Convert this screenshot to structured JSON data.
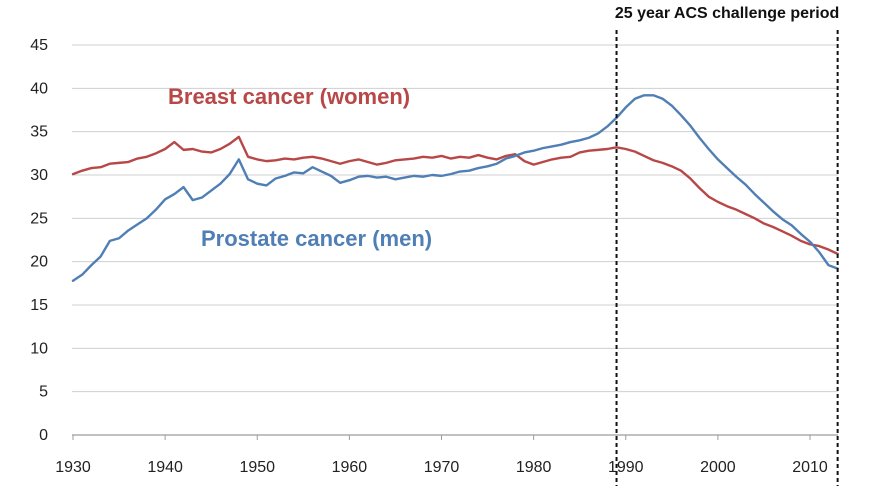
{
  "chart_data": {
    "type": "line",
    "title": "",
    "xlabel": "",
    "ylabel": "",
    "xlim": [
      1930,
      2013
    ],
    "ylim": [
      0,
      45
    ],
    "grid": true,
    "legend": "none",
    "x_ticks": [
      "1930",
      "1940",
      "1950",
      "1960",
      "1970",
      "1980",
      "1990",
      "2000",
      "2010"
    ],
    "y_ticks": [
      "0",
      "5",
      "10",
      "15",
      "20",
      "25",
      "30",
      "35",
      "40",
      "45"
    ],
    "annotation": {
      "text": "25 year ACS challenge period",
      "x_start": 1989,
      "x_end": 2013
    },
    "series": [
      {
        "name": "Breast cancer (women)",
        "color": "#b84747",
        "points": [
          [
            1930,
            30.1
          ],
          [
            1931,
            30.5
          ],
          [
            1932,
            30.8
          ],
          [
            1933,
            30.9
          ],
          [
            1934,
            31.3
          ],
          [
            1935,
            31.4
          ],
          [
            1936,
            31.5
          ],
          [
            1937,
            31.9
          ],
          [
            1938,
            32.1
          ],
          [
            1939,
            32.5
          ],
          [
            1940,
            33.0
          ],
          [
            1941,
            33.8
          ],
          [
            1942,
            32.9
          ],
          [
            1943,
            33.0
          ],
          [
            1944,
            32.7
          ],
          [
            1945,
            32.6
          ],
          [
            1946,
            33.0
          ],
          [
            1947,
            33.6
          ],
          [
            1948,
            34.4
          ],
          [
            1949,
            32.1
          ],
          [
            1950,
            31.8
          ],
          [
            1951,
            31.6
          ],
          [
            1952,
            31.7
          ],
          [
            1953,
            31.9
          ],
          [
            1954,
            31.8
          ],
          [
            1955,
            32.0
          ],
          [
            1956,
            32.1
          ],
          [
            1957,
            31.9
          ],
          [
            1958,
            31.6
          ],
          [
            1959,
            31.3
          ],
          [
            1960,
            31.6
          ],
          [
            1961,
            31.8
          ],
          [
            1962,
            31.5
          ],
          [
            1963,
            31.2
          ],
          [
            1964,
            31.4
          ],
          [
            1965,
            31.7
          ],
          [
            1966,
            31.8
          ],
          [
            1967,
            31.9
          ],
          [
            1968,
            32.1
          ],
          [
            1969,
            32.0
          ],
          [
            1970,
            32.2
          ],
          [
            1971,
            31.9
          ],
          [
            1972,
            32.1
          ],
          [
            1973,
            32.0
          ],
          [
            1974,
            32.3
          ],
          [
            1975,
            32.0
          ],
          [
            1976,
            31.8
          ],
          [
            1977,
            32.2
          ],
          [
            1978,
            32.4
          ],
          [
            1979,
            31.6
          ],
          [
            1980,
            31.2
          ],
          [
            1981,
            31.5
          ],
          [
            1982,
            31.8
          ],
          [
            1983,
            32.0
          ],
          [
            1984,
            32.1
          ],
          [
            1985,
            32.6
          ],
          [
            1986,
            32.8
          ],
          [
            1987,
            32.9
          ],
          [
            1988,
            33.0
          ],
          [
            1989,
            33.2
          ],
          [
            1990,
            33.0
          ],
          [
            1991,
            32.7
          ],
          [
            1992,
            32.2
          ],
          [
            1993,
            31.7
          ],
          [
            1994,
            31.4
          ],
          [
            1995,
            31.0
          ],
          [
            1996,
            30.5
          ],
          [
            1997,
            29.6
          ],
          [
            1998,
            28.5
          ],
          [
            1999,
            27.5
          ],
          [
            2000,
            26.9
          ],
          [
            2001,
            26.4
          ],
          [
            2002,
            26.0
          ],
          [
            2003,
            25.5
          ],
          [
            2004,
            25.0
          ],
          [
            2005,
            24.4
          ],
          [
            2006,
            24.0
          ],
          [
            2007,
            23.5
          ],
          [
            2008,
            23.0
          ],
          [
            2009,
            22.4
          ],
          [
            2010,
            22.0
          ],
          [
            2011,
            21.8
          ],
          [
            2012,
            21.4
          ],
          [
            2013,
            20.9
          ]
        ]
      },
      {
        "name": "Prostate cancer (men)",
        "color": "#4f7fb5",
        "points": [
          [
            1930,
            17.8
          ],
          [
            1931,
            18.5
          ],
          [
            1932,
            19.6
          ],
          [
            1933,
            20.6
          ],
          [
            1934,
            22.4
          ],
          [
            1935,
            22.7
          ],
          [
            1936,
            23.6
          ],
          [
            1937,
            24.3
          ],
          [
            1938,
            25.0
          ],
          [
            1939,
            26.0
          ],
          [
            1940,
            27.2
          ],
          [
            1941,
            27.8
          ],
          [
            1942,
            28.6
          ],
          [
            1943,
            27.1
          ],
          [
            1944,
            27.4
          ],
          [
            1945,
            28.2
          ],
          [
            1946,
            29.0
          ],
          [
            1947,
            30.1
          ],
          [
            1948,
            31.8
          ],
          [
            1949,
            29.5
          ],
          [
            1950,
            29.0
          ],
          [
            1951,
            28.8
          ],
          [
            1952,
            29.6
          ],
          [
            1953,
            29.9
          ],
          [
            1954,
            30.3
          ],
          [
            1955,
            30.2
          ],
          [
            1956,
            30.9
          ],
          [
            1957,
            30.4
          ],
          [
            1958,
            29.9
          ],
          [
            1959,
            29.1
          ],
          [
            1960,
            29.4
          ],
          [
            1961,
            29.8
          ],
          [
            1962,
            29.9
          ],
          [
            1963,
            29.7
          ],
          [
            1964,
            29.8
          ],
          [
            1965,
            29.5
          ],
          [
            1966,
            29.7
          ],
          [
            1967,
            29.9
          ],
          [
            1968,
            29.8
          ],
          [
            1969,
            30.0
          ],
          [
            1970,
            29.9
          ],
          [
            1971,
            30.1
          ],
          [
            1972,
            30.4
          ],
          [
            1973,
            30.5
          ],
          [
            1974,
            30.8
          ],
          [
            1975,
            31.0
          ],
          [
            1976,
            31.3
          ],
          [
            1977,
            31.9
          ],
          [
            1978,
            32.2
          ],
          [
            1979,
            32.6
          ],
          [
            1980,
            32.8
          ],
          [
            1981,
            33.1
          ],
          [
            1982,
            33.3
          ],
          [
            1983,
            33.5
          ],
          [
            1984,
            33.8
          ],
          [
            1985,
            34.0
          ],
          [
            1986,
            34.3
          ],
          [
            1987,
            34.8
          ],
          [
            1988,
            35.6
          ],
          [
            1989,
            36.6
          ],
          [
            1990,
            37.8
          ],
          [
            1991,
            38.8
          ],
          [
            1992,
            39.2
          ],
          [
            1993,
            39.2
          ],
          [
            1994,
            38.8
          ],
          [
            1995,
            38.0
          ],
          [
            1996,
            36.9
          ],
          [
            1997,
            35.7
          ],
          [
            1998,
            34.3
          ],
          [
            1999,
            33.0
          ],
          [
            2000,
            31.8
          ],
          [
            2001,
            30.8
          ],
          [
            2002,
            29.8
          ],
          [
            2003,
            28.9
          ],
          [
            2004,
            27.8
          ],
          [
            2005,
            26.8
          ],
          [
            2006,
            25.8
          ],
          [
            2007,
            24.9
          ],
          [
            2008,
            24.2
          ],
          [
            2009,
            23.2
          ],
          [
            2010,
            22.3
          ],
          [
            2011,
            21.1
          ],
          [
            2012,
            19.6
          ],
          [
            2013,
            19.2
          ]
        ]
      }
    ]
  }
}
